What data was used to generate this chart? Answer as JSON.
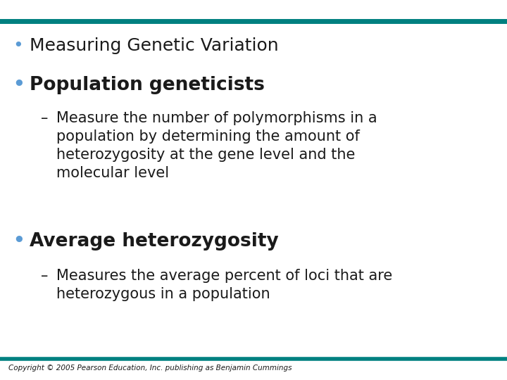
{
  "bg_color": "#ffffff",
  "top_bar_color": "#008080",
  "bottom_bar_color": "#008080",
  "text_color": "#1a1a1a",
  "bullet1_color": "#5b9bd5",
  "bullet2_color": "#5b9bd5",
  "bullet3_color": "#5b9bd5",
  "sub_text_color": "#1a1a1a",
  "copyright_color": "#1a1a1a",
  "bullet1": "Measuring Genetic Variation",
  "bullet2": "Population geneticists",
  "sub1_lines": [
    "Measure the number of polymorphisms in a",
    "population by determining the amount of",
    "heterozygosity at the gene level and the",
    "molecular level"
  ],
  "bullet3": "Average heterozygosity",
  "sub2_lines": [
    "Measures the average percent of loci that are",
    "heterozygous in a population"
  ],
  "copyright": "Copyright © 2005 Pearson Education, Inc. publishing as Benjamin Cummings",
  "bullet1_fontsize": 18,
  "bullet2_fontsize": 19,
  "bullet3_fontsize": 19,
  "sub_fontsize": 15,
  "copyright_fontsize": 7.5,
  "bullet1_bold": false,
  "bullet2_bold": true,
  "bullet3_bold": true
}
